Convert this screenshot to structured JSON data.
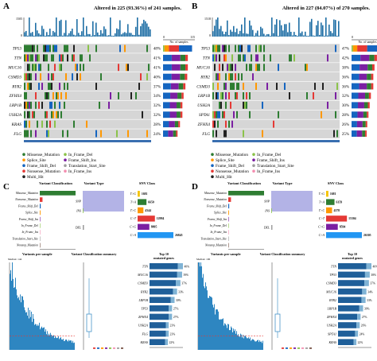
{
  "chart_data": [
    {
      "type": "heatmap",
      "panel_label": "A",
      "title": "Altered in 225 (93.36%) of 241 samples.",
      "top_ymax": "1505",
      "side_xlabel": "No. of samples",
      "side_ticks": [
        "0",
        "115"
      ],
      "genes": [
        "TP53",
        "TTN",
        "MUC16",
        "CSMD3",
        "RYR2",
        "ZFHX4",
        "LRP1B",
        "USH2A",
        "KRAS",
        "FLG"
      ],
      "percents": [
        "48%",
        "41%",
        "41%",
        "40%",
        "37%",
        "34%",
        "32%",
        "32%",
        "28%",
        "24%"
      ],
      "values": [
        48,
        41,
        41,
        40,
        37,
        34,
        32,
        32,
        28,
        24
      ]
    },
    {
      "type": "heatmap",
      "panel_label": "B",
      "title": "Altered in 227 (84.07%) of 270 samples.",
      "top_ymax": "1518",
      "side_xlabel": "No. of samples",
      "side_ticks": [
        "0",
        "128"
      ],
      "genes": [
        "TP53",
        "TTN",
        "MUC16",
        "RYR2",
        "CSMD3",
        "LRP1B",
        "USH2A",
        "SPTA1",
        "ZFHX4",
        "FLG"
      ],
      "percents": [
        "47%",
        "42%",
        "38%",
        "36%",
        "36%",
        "32%",
        "30%",
        "28%",
        "26%",
        "25%"
      ],
      "values": [
        47,
        42,
        38,
        36,
        36,
        32,
        30,
        28,
        26,
        25
      ]
    },
    {
      "type": "bar",
      "panel_label": "C",
      "title": "Variant Classification",
      "categories": [
        "Missense_Mutation",
        "Nonsense_Mutation",
        "Frame_Shift_Del",
        "Splice_Site",
        "Frame_Shift_Ins",
        "In_Frame_Del",
        "In_Frame_Ins",
        "Translation_Start_Site",
        "Nonstop_Mutation"
      ],
      "values": [
        34000,
        2600,
        900,
        700,
        300,
        120,
        20,
        15,
        10
      ]
    },
    {
      "type": "bar",
      "panel_label": "C",
      "title": "Variant Type",
      "categories": [
        "SNP",
        "INS",
        "DEL"
      ],
      "values": [
        36000,
        350,
        1100
      ]
    },
    {
      "type": "bar",
      "panel_label": "C",
      "title": "SNV Class",
      "categories": [
        "T>G",
        "T>A",
        "T>C",
        "C>T",
        "C>G",
        "C>A"
      ],
      "values": [
        1681,
        6650,
        4344,
        12984,
        8805,
        26845
      ]
    },
    {
      "type": "bar",
      "panel_label": "C",
      "title": "Variants per sample",
      "subtitle": "Median: 144",
      "median": 144
    },
    {
      "type": "bar",
      "panel_label": "C",
      "title": "Variant Classification summary"
    },
    {
      "type": "bar",
      "panel_label": "C",
      "title": "Top 10 mutated genes",
      "categories": [
        "TTN",
        "MUC16",
        "CSMD3",
        "RYR2",
        "LRP1B",
        "TP53",
        "ZFHX4",
        "USH2A",
        "FLG",
        "KRAS"
      ],
      "values": [
        40,
        39,
        37,
        33,
        30,
        27,
        27,
        23,
        23,
        22
      ]
    },
    {
      "type": "bar",
      "panel_label": "D",
      "title": "Variant Classification",
      "categories": [
        "Missense_Mutation",
        "Nonsense_Mutation",
        "Frame_Shift_Del",
        "Splice_Site",
        "Frame_Shift_Ins",
        "In_Frame_Del",
        "In_Frame_Ins",
        "Translation_Start_Site",
        "Nonstop_Mutation"
      ],
      "values": [
        33000,
        2500,
        850,
        650,
        280,
        110,
        20,
        15,
        10
      ]
    },
    {
      "type": "bar",
      "panel_label": "D",
      "title": "Variant Type",
      "categories": [
        "SNP",
        "INS",
        "DEL"
      ],
      "values": [
        35000,
        330,
        1000
      ]
    },
    {
      "type": "bar",
      "panel_label": "D",
      "title": "SNV Class",
      "categories": [
        "T>G",
        "T>A",
        "T>C",
        "C>T",
        "C>G",
        "C>A"
      ],
      "values": [
        1681,
        6159,
        4378,
        15304,
        8594,
        26305
      ]
    },
    {
      "type": "bar",
      "panel_label": "D",
      "title": "Variants per sample",
      "subtitle": "Median: 106",
      "median": 106
    },
    {
      "type": "bar",
      "panel_label": "D",
      "title": "Variant Classification summary"
    },
    {
      "type": "bar",
      "panel_label": "D",
      "title": "Top 10 mutated genes",
      "categories": [
        "TTN",
        "TP53",
        "CSMD3",
        "MUC16",
        "RYR2",
        "LRP1B",
        "ZFHX4",
        "USH2A",
        "SPTA1",
        "KRAS"
      ],
      "values": [
        40,
        38,
        37,
        34,
        33,
        30,
        27,
        26,
        24,
        22
      ]
    }
  ],
  "legend": {
    "items": [
      {
        "label": "Missense_Mutation",
        "color": "#2e7d32"
      },
      {
        "label": "In_Frame_Del",
        "color": "#8bc34a"
      },
      {
        "label": "Splice_Site",
        "color": "#ff9800"
      },
      {
        "label": "Frame_Shift_Ins",
        "color": "#7b1fa2"
      },
      {
        "label": "Frame_Shift_Del",
        "color": "#1565c0"
      },
      {
        "label": "Translation_Start_Site",
        "color": "#9e9e9e"
      },
      {
        "label": "Nonsense_Mutation",
        "color": "#e53935"
      },
      {
        "label": "In_Frame_Ins",
        "color": "#f48fb1"
      },
      {
        "label": "Multi_Hit",
        "color": "#212121"
      }
    ]
  },
  "colors": {
    "missense": "#2e7d32",
    "nonsense": "#e53935",
    "frameshift_del": "#1565c0",
    "frameshift_ins": "#7b1fa2",
    "splice": "#ff9800",
    "inframe_del": "#8bc34a",
    "grid_bg": "#d6d6d6",
    "snp": "#b3b3e6",
    "blue_bar": "#1f5f99"
  }
}
